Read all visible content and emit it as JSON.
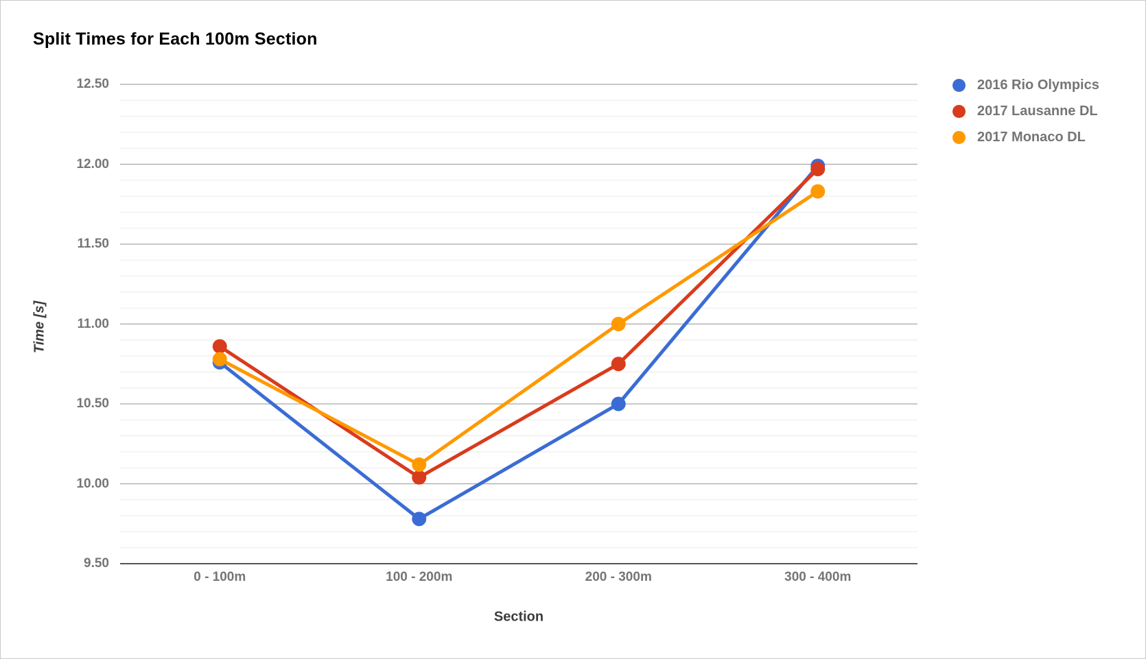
{
  "chart_data": {
    "type": "line",
    "title": "Split Times for Each 100m Section",
    "xlabel": "Section",
    "ylabel": "Time [s]",
    "categories": [
      "0 - 100m",
      "100 - 200m",
      "200 - 300m",
      "300 - 400m"
    ],
    "series": [
      {
        "name": "2016 Rio Olympics",
        "color": "#3B6CD5",
        "values": [
          10.76,
          9.78,
          10.5,
          11.99
        ]
      },
      {
        "name": "2017 Lausanne DL",
        "color": "#D93B1D",
        "values": [
          10.86,
          10.04,
          10.75,
          11.97
        ]
      },
      {
        "name": "2017 Monaco DL",
        "color": "#FF9900",
        "values": [
          10.78,
          10.12,
          11.0,
          11.83
        ]
      }
    ],
    "ylim": [
      9.5,
      12.5
    ],
    "yticks": [
      {
        "value": 9.5,
        "label": "9.50"
      },
      {
        "value": 10.0,
        "label": "10.00"
      },
      {
        "value": 10.5,
        "label": "10.50"
      },
      {
        "value": 11.0,
        "label": "11.00"
      },
      {
        "value": 11.5,
        "label": "11.50"
      },
      {
        "value": 12.0,
        "label": "12.00"
      },
      {
        "value": 12.5,
        "label": "12.50"
      }
    ],
    "minor_tick_step": 0.1,
    "grid": true,
    "legend_position": "right",
    "colors": {
      "minor_gridline": "#e9e9e9",
      "major_gridline": "#a6a6a6",
      "axis_line": "#555555",
      "tick_text": "#757575",
      "title_text": "#000000"
    }
  }
}
